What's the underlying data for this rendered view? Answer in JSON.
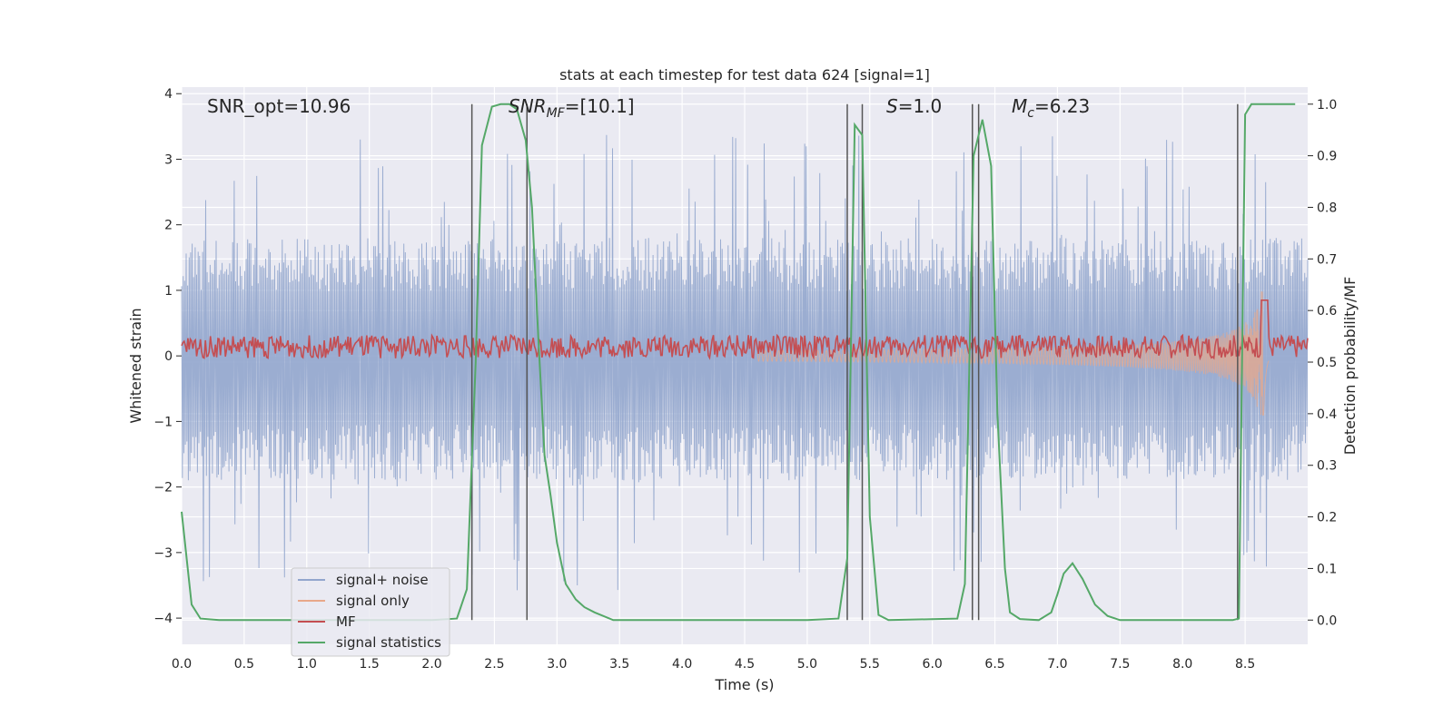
{
  "chart_data": {
    "type": "line",
    "title": "stats at each timestep for test data 624 [signal=1]",
    "xlabel": "Time (s)",
    "ylabel_left": "Whitened strain",
    "ylabel_right": "Detection probability/MF",
    "xlim": [
      0,
      9.0
    ],
    "ylim_left": [
      -4.4,
      4.1
    ],
    "ylim_right": [
      -0.047,
      1.033
    ],
    "x_ticks": [
      "0.0",
      "0.5",
      "1.0",
      "1.5",
      "2.0",
      "2.5",
      "3.0",
      "3.5",
      "4.0",
      "4.5",
      "5.0",
      "5.5",
      "6.0",
      "6.5",
      "7.0",
      "7.5",
      "8.0",
      "8.5"
    ],
    "y_ticks_left": [
      "4",
      "3",
      "2",
      "1",
      "0",
      "−1",
      "−2",
      "−3",
      "−4"
    ],
    "y_ticks_right": [
      "1.0",
      "0.9",
      "0.8",
      "0.7",
      "0.6",
      "0.5",
      "0.4",
      "0.3",
      "0.2",
      "0.1",
      "0.0"
    ],
    "grid": true,
    "legend_position": "lower-left",
    "annotations": {
      "snr_opt": "SNR_opt=10.96",
      "snr_mf_main": "SNR",
      "snr_mf_sub": "MF",
      "snr_mf_rest": "=[10.1]",
      "s_main": "S",
      "s_rest": "=1.0",
      "mc_main": "M",
      "mc_sub": "c",
      "mc_rest": "=6.23"
    },
    "series": [
      {
        "name": "signal+ noise",
        "color": "#92a6cd",
        "axis": "left",
        "envelope_pos": 1.8,
        "envelope_neg": -1.9,
        "peak_max": 3.4,
        "peak_min": -3.6
      },
      {
        "name": "signal only",
        "color": "#e8a88a",
        "axis": "left",
        "chirp_start_time": 4.6,
        "merger_time": 8.65,
        "peak_amplitude": 1.3
      },
      {
        "name": "MF",
        "color": "#c44e52",
        "axis": "right",
        "baseline": 0.53,
        "peak": 0.62
      },
      {
        "name": "signal statistics",
        "color": "#55a868",
        "axis": "right",
        "points": [
          [
            0.0,
            0.21
          ],
          [
            0.08,
            0.03
          ],
          [
            0.15,
            0.003
          ],
          [
            0.3,
            0.0
          ],
          [
            1.0,
            0.0
          ],
          [
            1.5,
            0.0
          ],
          [
            2.0,
            0.0
          ],
          [
            2.2,
            0.003
          ],
          [
            2.28,
            0.06
          ],
          [
            2.35,
            0.5
          ],
          [
            2.4,
            0.92
          ],
          [
            2.48,
            0.995
          ],
          [
            2.55,
            1.0
          ],
          [
            2.62,
            1.0
          ],
          [
            2.68,
            0.99
          ],
          [
            2.75,
            0.93
          ],
          [
            2.8,
            0.8
          ],
          [
            2.85,
            0.55
          ],
          [
            2.9,
            0.32
          ],
          [
            2.95,
            0.24
          ],
          [
            3.0,
            0.15
          ],
          [
            3.07,
            0.07
          ],
          [
            3.15,
            0.04
          ],
          [
            3.22,
            0.025
          ],
          [
            3.3,
            0.015
          ],
          [
            3.45,
            0.0
          ],
          [
            4.0,
            0.0
          ],
          [
            5.0,
            0.0
          ],
          [
            5.25,
            0.003
          ],
          [
            5.32,
            0.12
          ],
          [
            5.38,
            0.96
          ],
          [
            5.44,
            0.94
          ],
          [
            5.5,
            0.2
          ],
          [
            5.57,
            0.01
          ],
          [
            5.65,
            0.0
          ],
          [
            6.2,
            0.003
          ],
          [
            6.26,
            0.07
          ],
          [
            6.33,
            0.9
          ],
          [
            6.4,
            0.97
          ],
          [
            6.47,
            0.88
          ],
          [
            6.52,
            0.4
          ],
          [
            6.58,
            0.1
          ],
          [
            6.62,
            0.015
          ],
          [
            6.7,
            0.002
          ],
          [
            6.85,
            0.0
          ],
          [
            6.95,
            0.015
          ],
          [
            7.0,
            0.05
          ],
          [
            7.05,
            0.09
          ],
          [
            7.12,
            0.11
          ],
          [
            7.2,
            0.08
          ],
          [
            7.3,
            0.03
          ],
          [
            7.4,
            0.008
          ],
          [
            7.5,
            0.0
          ],
          [
            8.0,
            0.0
          ],
          [
            8.4,
            0.0
          ],
          [
            8.45,
            0.003
          ],
          [
            8.5,
            0.98
          ],
          [
            8.55,
            1.0
          ],
          [
            8.9,
            1.0
          ]
        ]
      }
    ],
    "vertical_markers": [
      2.32,
      2.76,
      5.32,
      5.44,
      6.32,
      6.37,
      8.44
    ]
  }
}
